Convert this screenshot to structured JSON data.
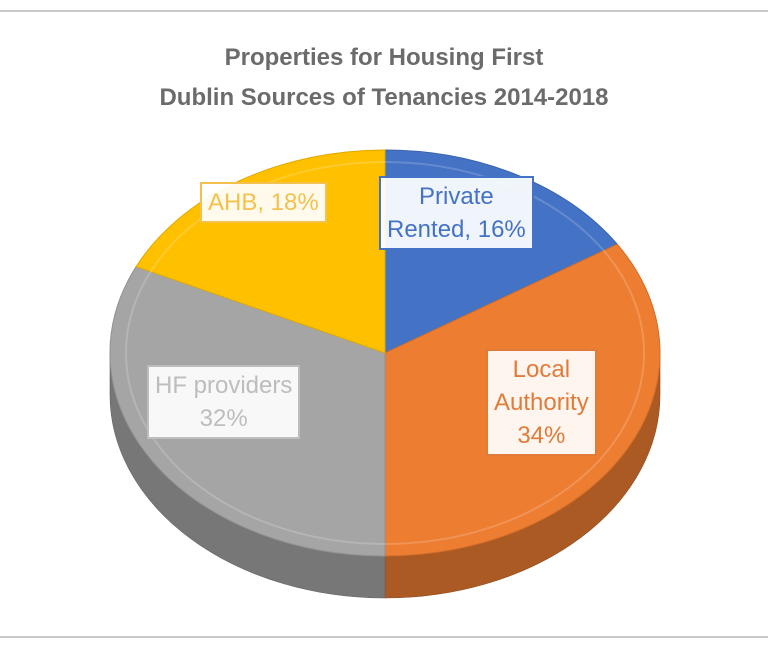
{
  "chart_data": {
    "type": "pie",
    "title": [
      "Properties for Housing First",
      "Dublin Sources of Tenancies 2014-2018"
    ],
    "slices": [
      {
        "label": [
          "Private",
          "Rented, 16%"
        ],
        "value": 16,
        "color": "#4472c4",
        "label_color": "#4472c4"
      },
      {
        "label": [
          "Local",
          "Authority",
          "34%"
        ],
        "value": 34,
        "color": "#ed7d31",
        "label_color": "#e07b39"
      },
      {
        "label": [
          "HF providers",
          "32%"
        ],
        "value": 32,
        "color": "#a5a5a5",
        "label_color": "#bdbdbd"
      },
      {
        "label": [
          "AHB, 18%"
        ],
        "value": 18,
        "color": "#ffc000",
        "label_color": "#f2c14e"
      }
    ]
  }
}
